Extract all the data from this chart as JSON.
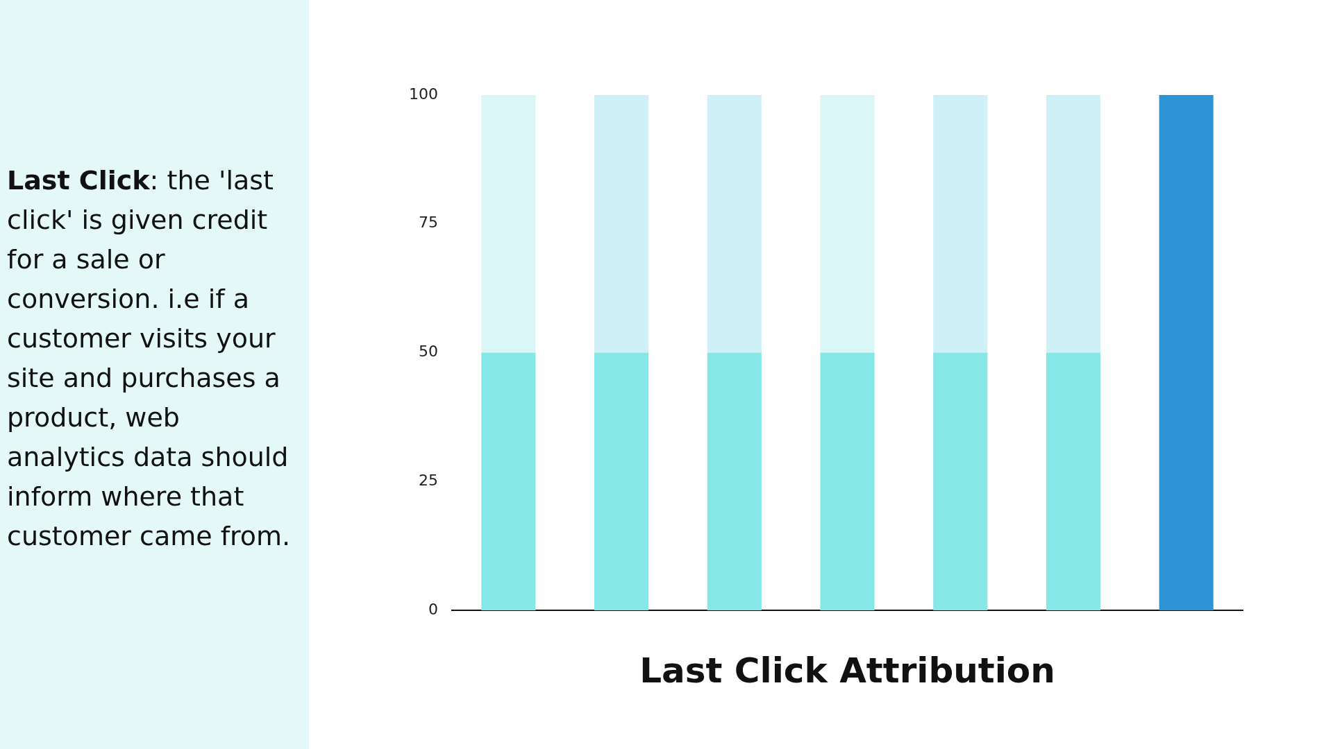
{
  "chart_data": {
    "type": "bar",
    "stacked": true,
    "xlabel": "Last Click Attribution",
    "annotations": [
      "Last Click: the 'last click' is given credit for a sale or conversion. i.e if a customer visits your site and purchases a product, web analytics data should inform where that customer came from."
    ],
    "categories": [
      null,
      null,
      null,
      null,
      null,
      null,
      null
    ],
    "series": [
      {
        "colors": [
          "#86e8e6",
          "#86e8e6",
          "#86e8e6",
          "#86e8e6",
          "#86e8e6",
          "#86e8e6",
          "#86e8e6"
        ],
        "values": [
          50,
          50,
          50,
          50,
          50,
          50,
          null
        ]
      },
      {
        "colors": [
          "#daf6f6",
          "#d0f0f8",
          "#d0f0f8",
          "#daf6f6",
          "#d0f0f8",
          "#d0f0f8",
          "#d0f0f8"
        ],
        "values": [
          50,
          50,
          50,
          50,
          50,
          50,
          null
        ]
      },
      {
        "colors": [
          "#2e93d4",
          "#2e93d4",
          "#2e93d4",
          "#2e93d4",
          "#2e93d4",
          "#2e93d4",
          "#2e93d4"
        ],
        "values": [
          null,
          null,
          null,
          null,
          null,
          null,
          100
        ]
      }
    ],
    "ylim": [
      0,
      100
    ],
    "yticks": [
      0,
      25,
      50,
      75,
      100
    ],
    "grid": false,
    "legend": false
  }
}
